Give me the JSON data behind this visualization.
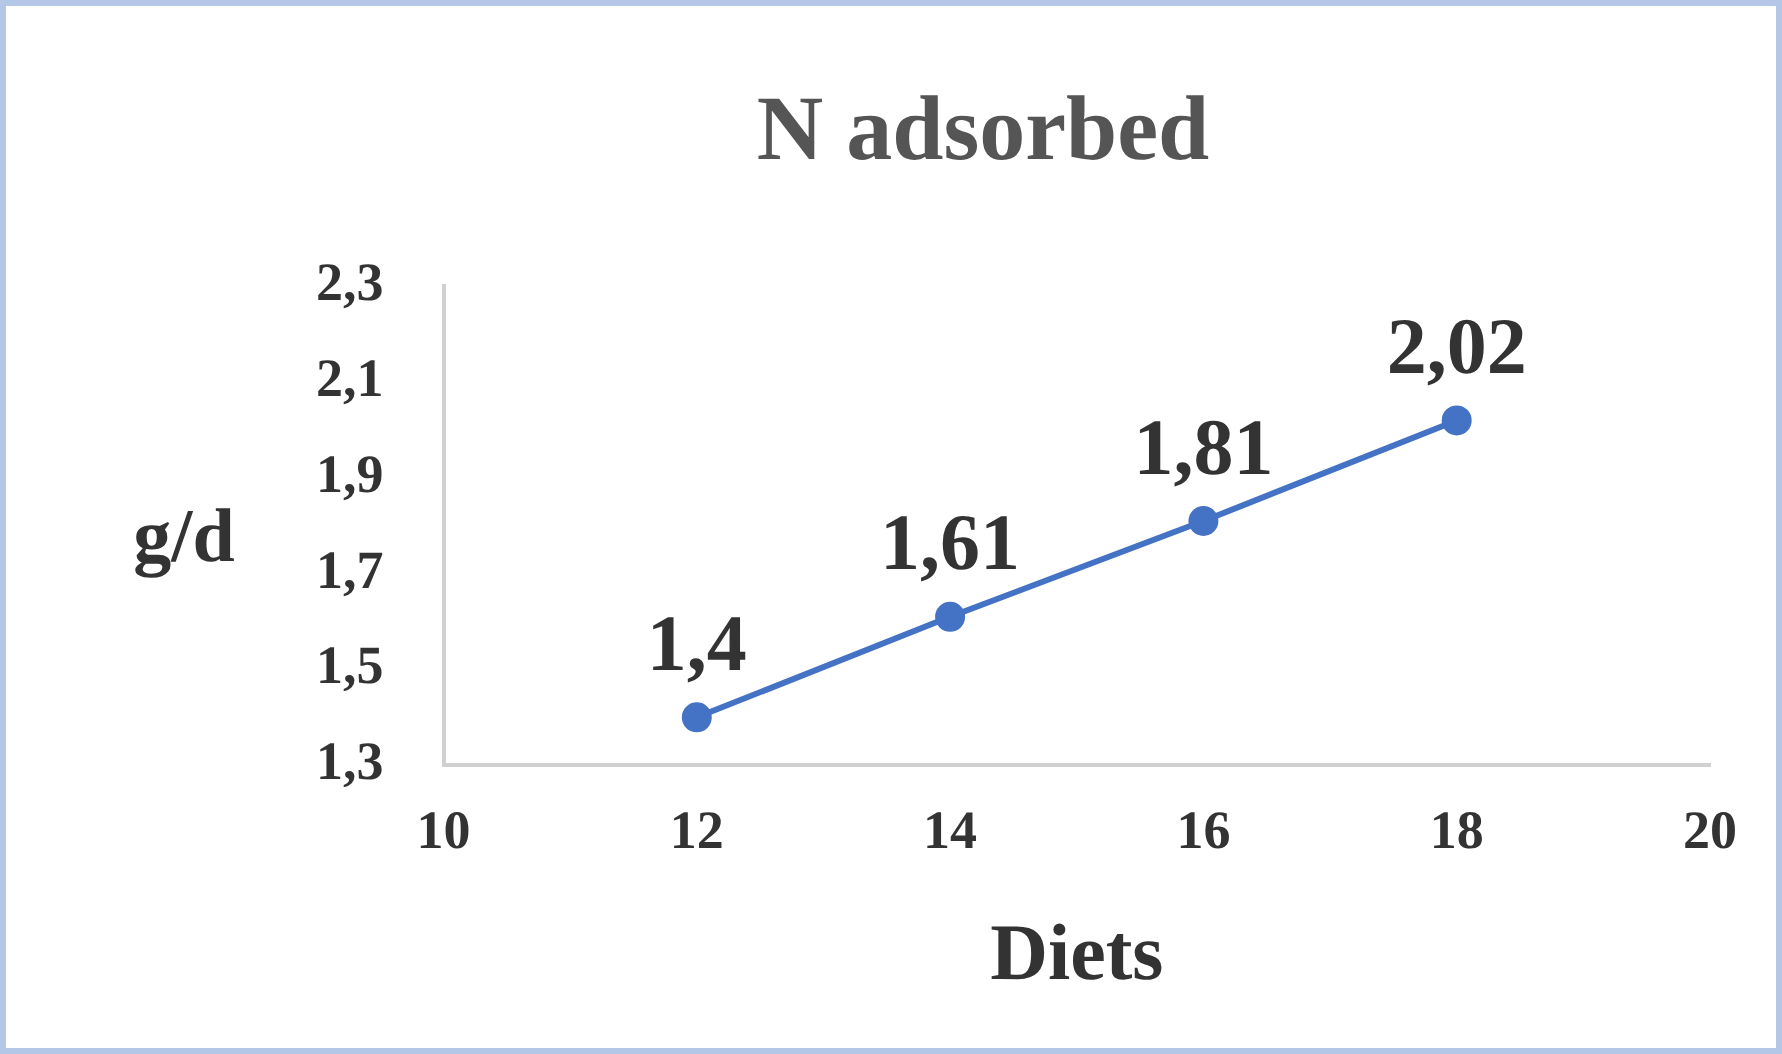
{
  "chart_data": {
    "type": "line",
    "title": "N adsorbed",
    "xlabel": "Diets",
    "ylabel": "g/d",
    "x": [
      12,
      14,
      16,
      18
    ],
    "series": [
      {
        "color": "#4472c4",
        "values": [
          1.4,
          1.61,
          1.81,
          2.02
        ],
        "value_labels": [
          "1,4",
          "1,61",
          "1,81",
          "2,02"
        ]
      }
    ],
    "xlim": [
      10,
      20
    ],
    "xticks": [
      10,
      12,
      14,
      16,
      18,
      20
    ],
    "ylim": [
      1.3,
      2.3
    ],
    "yticks": [
      {
        "value": 1.3,
        "label": "1,3"
      },
      {
        "value": 1.5,
        "label": "1,5"
      },
      {
        "value": 1.7,
        "label": "1,7"
      },
      {
        "value": 1.9,
        "label": "1,9"
      },
      {
        "value": 2.1,
        "label": "2,1"
      },
      {
        "value": 2.3,
        "label": "2,3"
      }
    ],
    "grid": false,
    "legend": false,
    "marker": "circle",
    "line_style": "solid"
  }
}
